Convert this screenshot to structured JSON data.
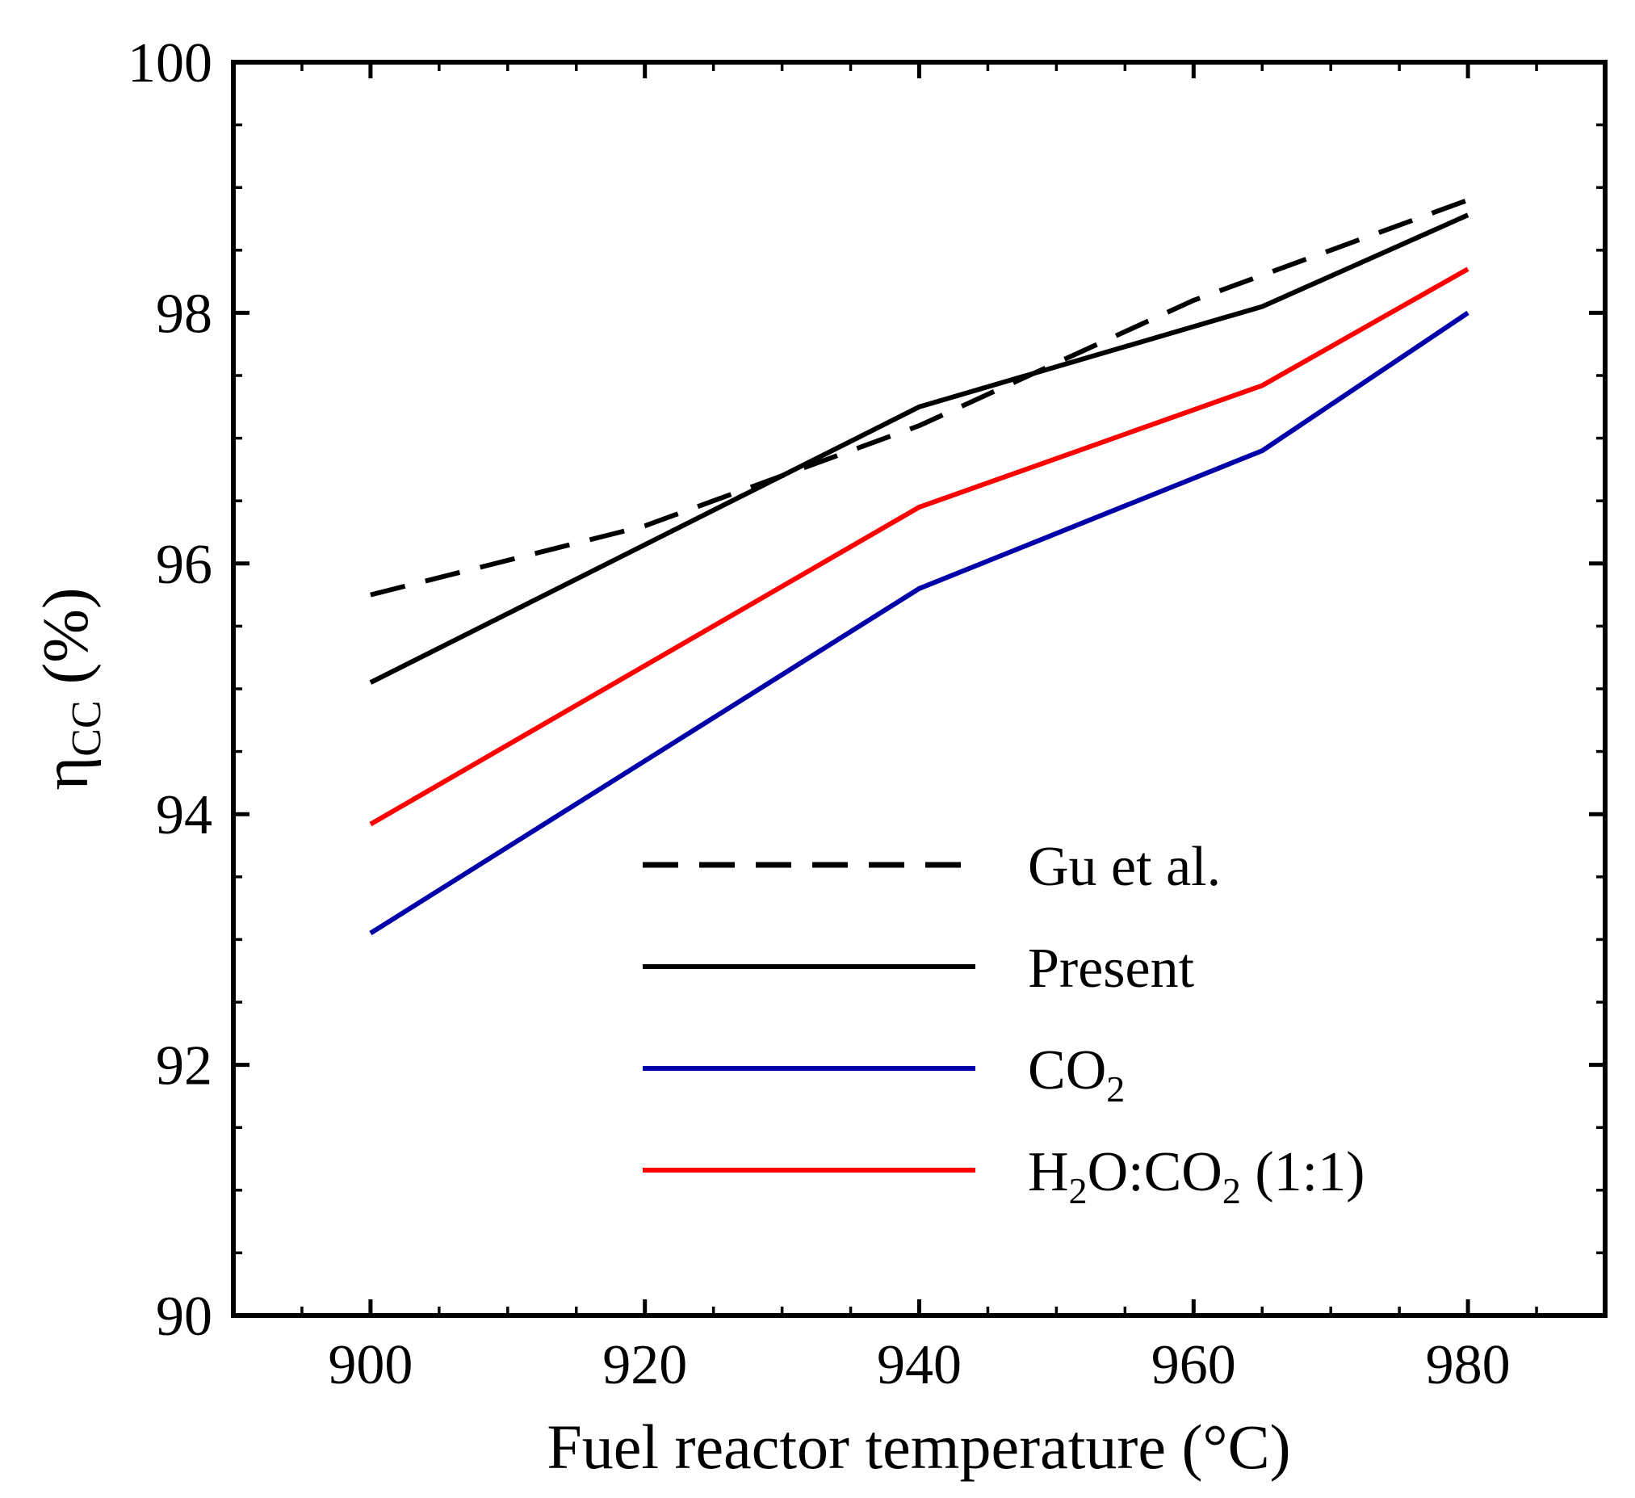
{
  "chart_data": {
    "type": "line",
    "xlabel": "Fuel reactor temperature (°C)",
    "ylabel": {
      "symbol": "η",
      "subscript": "CC",
      "unit": "(%)"
    },
    "xlim": [
      890,
      990
    ],
    "ylim": [
      90,
      100
    ],
    "xticks": [
      900,
      920,
      940,
      960,
      980
    ],
    "yticks": [
      90,
      92,
      94,
      96,
      98,
      100
    ],
    "x_minor_step": 5,
    "y_minor_step": 0.5,
    "grid": false,
    "legend_position": "bottom-right",
    "series": [
      {
        "key": "gu",
        "name": "Gu et al.",
        "color": "#000000",
        "dash": "dashed",
        "x": [
          900,
          920,
          940,
          960,
          980
        ],
        "y": [
          95.75,
          96.3,
          97.1,
          98.1,
          98.9
        ]
      },
      {
        "key": "present",
        "name": "Present",
        "color": "#000000",
        "dash": "solid",
        "x": [
          900,
          940,
          965,
          980
        ],
        "y": [
          95.05,
          97.25,
          98.05,
          98.78
        ]
      },
      {
        "key": "co2",
        "name_parts": [
          "CO",
          "2",
          ""
        ],
        "color": "#0000a8",
        "dash": "solid",
        "x": [
          900,
          940,
          965,
          980
        ],
        "y": [
          93.05,
          95.8,
          96.9,
          98.0
        ]
      },
      {
        "key": "h2o_co2",
        "name_parts": [
          "H",
          "2",
          "O:CO",
          "2",
          " (1:1)"
        ],
        "color": "#ff0000",
        "dash": "solid",
        "x": [
          900,
          940,
          965,
          980
        ],
        "y": [
          93.92,
          96.45,
          97.42,
          98.35
        ]
      }
    ]
  }
}
